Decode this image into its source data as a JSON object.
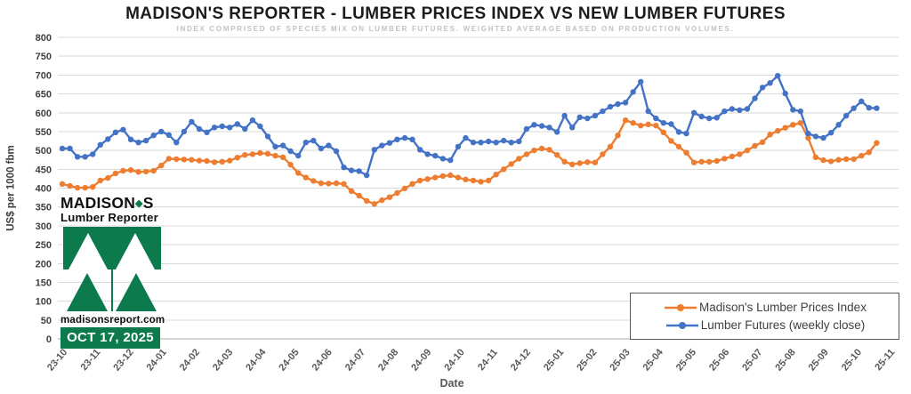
{
  "title": "MADISON'S REPORTER - LUMBER PRICES INDEX VS NEW LUMBER FUTURES",
  "subtitle": "INDEX COMPRISED OF SPECIES MIX ON LUMBER FUTURES. WEIGHTED AVERAGE BASED ON PRODUCTION VOLUMES.",
  "y_axis": {
    "title": "US$ per 1000 fbm",
    "ticks": [
      0,
      50,
      100,
      150,
      200,
      250,
      300,
      350,
      400,
      450,
      500,
      550,
      600,
      650,
      700,
      750,
      800
    ]
  },
  "x_axis": {
    "title": "Date",
    "labels": [
      "23-10",
      "23-11",
      "23-12",
      "24-01",
      "24-02",
      "24-03",
      "24-04",
      "24-05",
      "24-06",
      "24-07",
      "24-08",
      "24-09",
      "24-10",
      "24-11",
      "24-12",
      "25-01",
      "25-02",
      "25-03",
      "25-04",
      "25-05",
      "25-06",
      "25-07",
      "25-08",
      "25-09",
      "25-10",
      "25-11"
    ]
  },
  "legend": {
    "items": [
      {
        "label": "Madison's Lumber Prices Index",
        "color": "#ED7D31"
      },
      {
        "label": "Lumber Futures (weekly close)",
        "color": "#4472C4"
      }
    ]
  },
  "logo": {
    "name_left": "MADISON",
    "name_dot": "◆",
    "name_right": "S",
    "tagline": "Lumber Reporter",
    "website": "madisonsreport.com",
    "date_badge": "OCT 17, 2025",
    "green": "#0d7a4e"
  },
  "chart_data": {
    "type": "line",
    "x_unit": "weekly",
    "x_range_labels": [
      "23-10",
      "25-10"
    ],
    "ylim": [
      0,
      800
    ],
    "grid": true,
    "legend_position": "bottom-right",
    "series": [
      {
        "id": "prices-index",
        "name": "Madison's Lumber Prices Index",
        "color": "#ED7D31",
        "values": [
          411,
          406,
          401,
          401,
          403,
          420,
          427,
          439,
          446,
          448,
          443,
          444,
          446,
          460,
          478,
          477,
          476,
          475,
          473,
          472,
          469,
          470,
          473,
          481,
          488,
          490,
          493,
          491,
          486,
          482,
          462,
          440,
          428,
          419,
          413,
          412,
          413,
          411,
          392,
          380,
          366,
          358,
          368,
          376,
          387,
          399,
          411,
          420,
          424,
          428,
          432,
          434,
          428,
          423,
          420,
          417,
          420,
          436,
          450,
          464,
          478,
          490,
          500,
          505,
          502,
          488,
          470,
          463,
          466,
          469,
          468,
          490,
          510,
          540,
          580,
          573,
          566,
          569,
          566,
          548,
          525,
          510,
          494,
          468,
          470,
          470,
          472,
          478,
          484,
          490,
          500,
          512,
          522,
          542,
          552,
          560,
          568,
          573,
          533,
          482,
          474,
          471,
          475,
          477,
          477,
          486,
          495,
          520
        ]
      },
      {
        "id": "futures",
        "name": "Lumber Futures (weekly close)",
        "color": "#4472C4",
        "values": [
          505,
          505,
          483,
          483,
          490,
          515,
          530,
          548,
          555,
          529,
          521,
          526,
          540,
          550,
          541,
          521,
          550,
          576,
          557,
          548,
          561,
          564,
          561,
          570,
          557,
          580,
          564,
          537,
          510,
          513,
          498,
          486,
          521,
          526,
          505,
          513,
          498,
          455,
          447,
          445,
          434,
          502,
          513,
          520,
          529,
          533,
          529,
          502,
          490,
          486,
          478,
          474,
          510,
          533,
          521,
          521,
          524,
          521,
          526,
          521,
          524,
          557,
          568,
          565,
          561,
          549,
          592,
          561,
          588,
          585,
          592,
          604,
          616,
          623,
          627,
          655,
          682,
          604,
          585,
          573,
          570,
          549,
          545,
          600,
          590,
          585,
          587,
          604,
          610,
          607,
          610,
          638,
          667,
          679,
          698,
          651,
          608,
          604,
          545,
          537,
          533,
          547,
          568,
          592,
          612,
          630,
          613,
          612
        ]
      }
    ]
  }
}
